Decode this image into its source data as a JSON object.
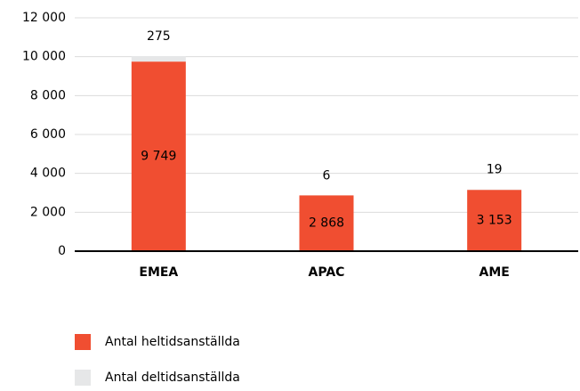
{
  "chart_data": {
    "type": "stacked_bar",
    "categories": [
      "EMEA",
      "APAC",
      "AME"
    ],
    "series": [
      {
        "name": "Antal heltidsanställda",
        "color": "#f04e31",
        "values": [
          9749,
          2868,
          3153
        ],
        "value_labels": [
          "9 749",
          "2 868",
          "3 153"
        ]
      },
      {
        "name": "Antal deltidsanställda",
        "color": "#e6e7e8",
        "values": [
          275,
          6,
          19
        ]
      }
    ],
    "ylim": [
      0,
      12000
    ],
    "yticks": [
      0,
      {
        "value": 2000,
        "label": "2 000"
      },
      {
        "value": 4000,
        "label": "4 000"
      },
      {
        "value": 6000,
        "label": "6 000"
      },
      {
        "value": 8000,
        "label": "8 000"
      },
      {
        "value": 10000,
        "label": "10 000"
      },
      {
        "value": 12000,
        "label": "12 000"
      }
    ],
    "grid": true,
    "legend": "bottom"
  }
}
